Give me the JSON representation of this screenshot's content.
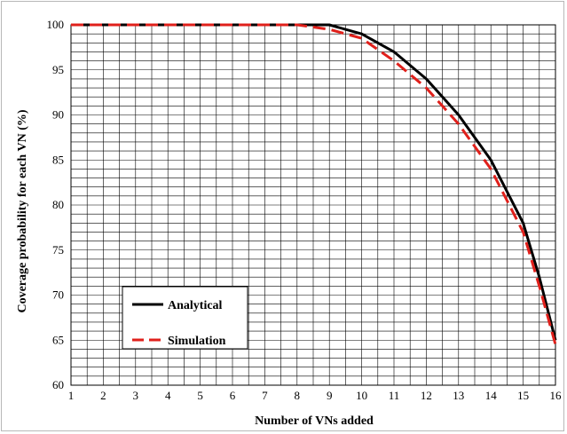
{
  "chart_data": {
    "type": "line",
    "xlabel": "Number of VNs added",
    "ylabel": "Coverage probability for each VN (%)",
    "xlim": [
      1,
      16
    ],
    "ylim": [
      60,
      100
    ],
    "xticks": [
      "1",
      "2",
      "3",
      "4",
      "5",
      "6",
      "7",
      "8",
      "9",
      "10",
      "11",
      "12",
      "13",
      "14",
      "15",
      "16"
    ],
    "yticks": [
      "60",
      "65",
      "70",
      "75",
      "80",
      "85",
      "90",
      "95",
      "100"
    ],
    "grid": true,
    "legend_position": "bottom-left",
    "series": [
      {
        "name": "Analytical",
        "color": "#000000",
        "style": "solid",
        "x": [
          1,
          2,
          3,
          4,
          5,
          6,
          7,
          8,
          9,
          10,
          11,
          12,
          13,
          14,
          15,
          15.5,
          16
        ],
        "y": [
          100,
          100,
          100,
          100,
          100,
          100,
          100,
          100,
          100,
          99,
          97,
          94,
          90,
          85,
          78,
          72,
          65
        ]
      },
      {
        "name": "Simulation",
        "color": "#e0201b",
        "style": "dashed",
        "x": [
          1,
          2,
          3,
          4,
          5,
          6,
          7,
          8,
          9,
          10,
          11,
          12,
          13,
          14,
          15,
          15.5,
          16
        ],
        "y": [
          100,
          100,
          100,
          100,
          100,
          100,
          100,
          100,
          99.5,
          98.5,
          96,
          93,
          89,
          84,
          77,
          71,
          64.5
        ]
      }
    ]
  }
}
